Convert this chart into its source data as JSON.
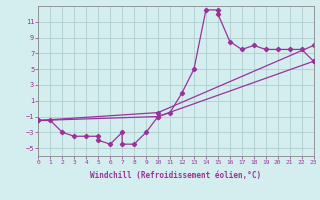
{
  "xlabel": "Windchill (Refroidissement éolien,°C)",
  "bg_color": "#d4eef0",
  "grid_color": "#b0cdd0",
  "line_color": "#993399",
  "spine_color": "#888888",
  "xlim": [
    0,
    23
  ],
  "ylim": [
    -6,
    13
  ],
  "xticks": [
    0,
    1,
    2,
    3,
    4,
    5,
    6,
    7,
    8,
    9,
    10,
    11,
    12,
    13,
    14,
    15,
    16,
    17,
    18,
    19,
    20,
    21,
    22,
    23
  ],
  "yticks": [
    -5,
    -3,
    -1,
    1,
    3,
    5,
    7,
    9,
    11
  ],
  "series1_x": [
    0,
    1,
    2,
    3,
    4,
    5,
    5,
    6,
    7,
    7,
    8,
    9,
    10,
    11,
    12,
    13,
    14,
    15,
    15,
    16,
    17,
    18,
    19,
    20,
    21,
    22,
    23
  ],
  "series1_y": [
    -1.5,
    -1.5,
    -3,
    -3.5,
    -3.5,
    -3.5,
    -4,
    -4.5,
    -3,
    -4.5,
    -4.5,
    -3,
    -1,
    -0.5,
    2,
    5,
    12.5,
    12.5,
    12,
    8.5,
    7.5,
    8,
    7.5,
    7.5,
    7.5,
    7.5,
    6
  ],
  "series2_x": [
    0,
    10,
    23
  ],
  "series2_y": [
    -1.5,
    -0.5,
    8
  ],
  "series3_x": [
    0,
    10,
    23
  ],
  "series3_y": [
    -1.5,
    -1.0,
    6
  ],
  "xlabel_fontsize": 5.5,
  "tick_fontsize": 5.0
}
